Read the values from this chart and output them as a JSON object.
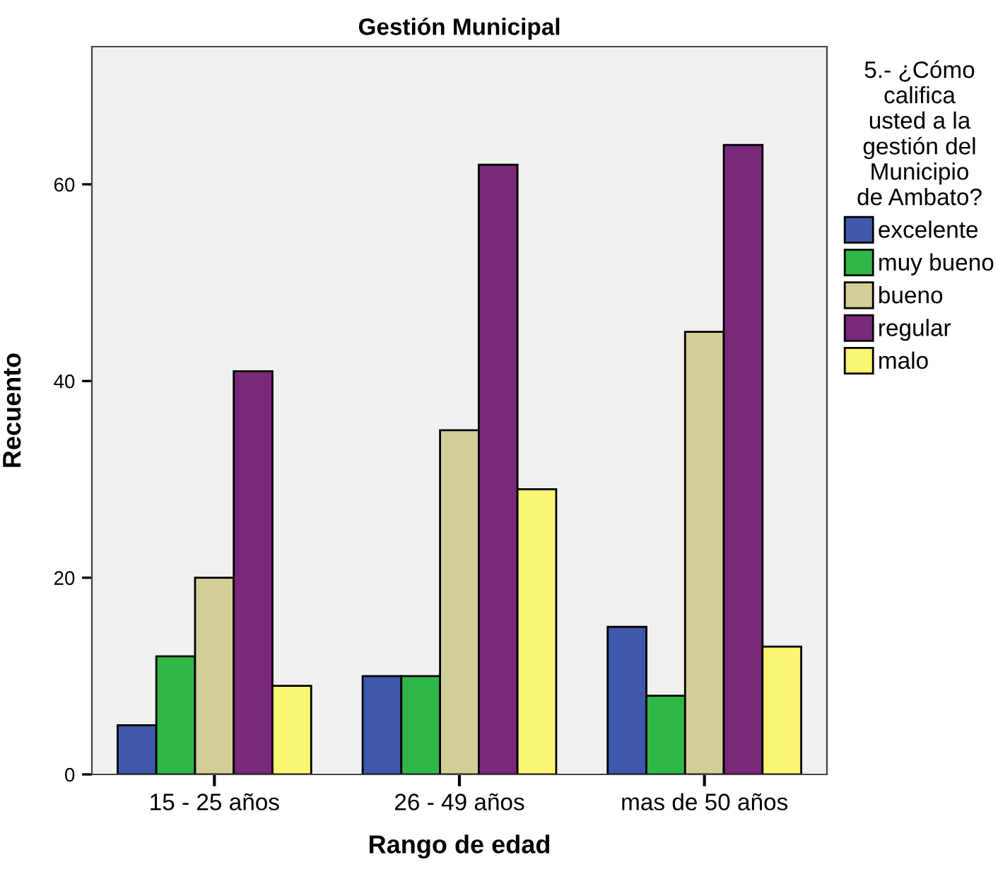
{
  "chart_data": {
    "type": "bar",
    "title": "Gestión Municipal",
    "xlabel": "Rango de edad",
    "ylabel": "Recuento",
    "legend_title": "5.- ¿Cómo\ncalifica\nusted a la\ngestión del\nMunicipio\nde Ambato?",
    "categories": [
      "15 - 25 años",
      "26 - 49 años",
      "mas de 50 años"
    ],
    "series": [
      {
        "name": "excelente",
        "color": "#3e58ac",
        "values": [
          5,
          10,
          15
        ]
      },
      {
        "name": "muy bueno",
        "color": "#2eb848",
        "values": [
          12,
          10,
          8
        ]
      },
      {
        "name": "bueno",
        "color": "#d2ce98",
        "values": [
          20,
          35,
          45
        ]
      },
      {
        "name": "regular",
        "color": "#79287a",
        "values": [
          41,
          62,
          64
        ]
      },
      {
        "name": "malo",
        "color": "#fbf574",
        "values": [
          9,
          29,
          13
        ]
      }
    ],
    "ylim": [
      0,
      74
    ],
    "yticks": [
      0,
      20,
      40,
      60
    ],
    "grid": false,
    "legend": "right"
  }
}
